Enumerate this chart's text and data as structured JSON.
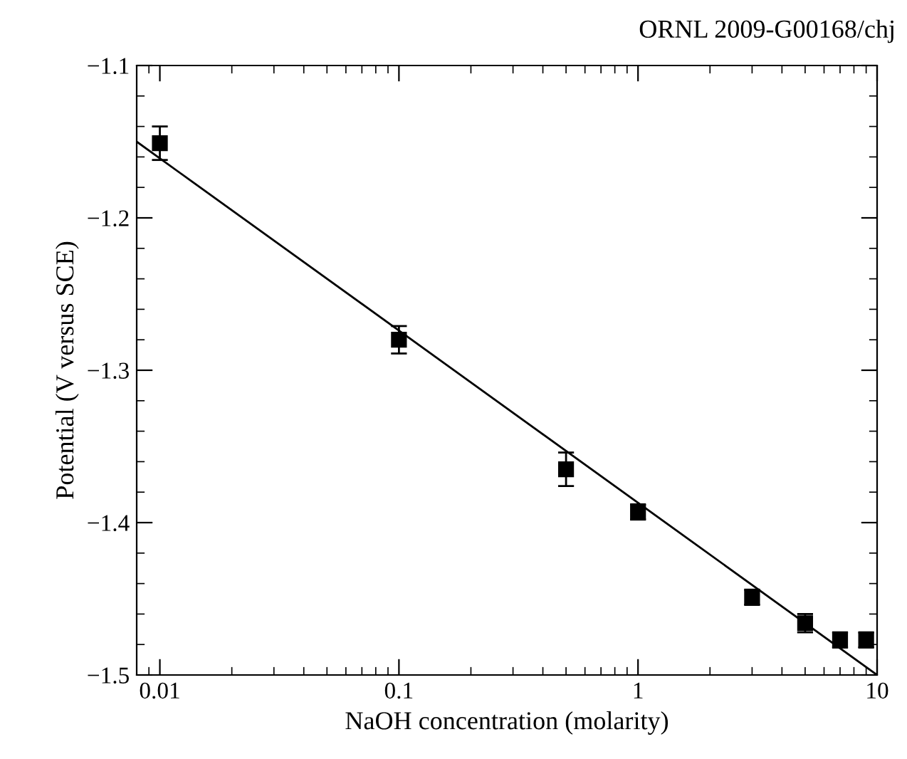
{
  "chart_data": {
    "type": "scatter",
    "xlabel": "NaOH concentration (molarity)",
    "ylabel": "Potential (V versus SCE)",
    "annotations": [
      "ORNL 2009-G00168/chj"
    ],
    "log": "x",
    "grid": false,
    "xlim": [
      0.008,
      10
    ],
    "xticks": [
      0.01,
      0.1,
      1,
      10
    ],
    "ylim": [
      -1.5,
      -1.1
    ],
    "yticks": [
      {
        "value": -1.5,
        "label": "−1.5"
      },
      {
        "value": -1.4,
        "label": "−1.4"
      },
      {
        "value": -1.3,
        "label": "−1.3"
      },
      {
        "value": -1.2,
        "label": "−1.2"
      },
      {
        "value": -1.1,
        "label": "−1.1"
      }
    ],
    "series": [
      {
        "color": "#000000",
        "marker": "square",
        "x": [
          0.01,
          0.1,
          0.5,
          1,
          3,
          5,
          7,
          9
        ],
        "values": [
          -1.151,
          -1.28,
          -1.365,
          -1.393,
          -1.449,
          -1.466,
          -1.477,
          -1.477
        ],
        "errors": [
          0.011,
          0.009,
          0.011,
          0.005,
          0.005,
          0.006,
          0.005,
          0.005
        ]
      },
      {
        "type": "line",
        "color": "#000000",
        "marker": "none",
        "line_style": "solid",
        "x": [
          0.008,
          10
        ],
        "values": [
          -1.15,
          -1.5
        ]
      }
    ]
  }
}
